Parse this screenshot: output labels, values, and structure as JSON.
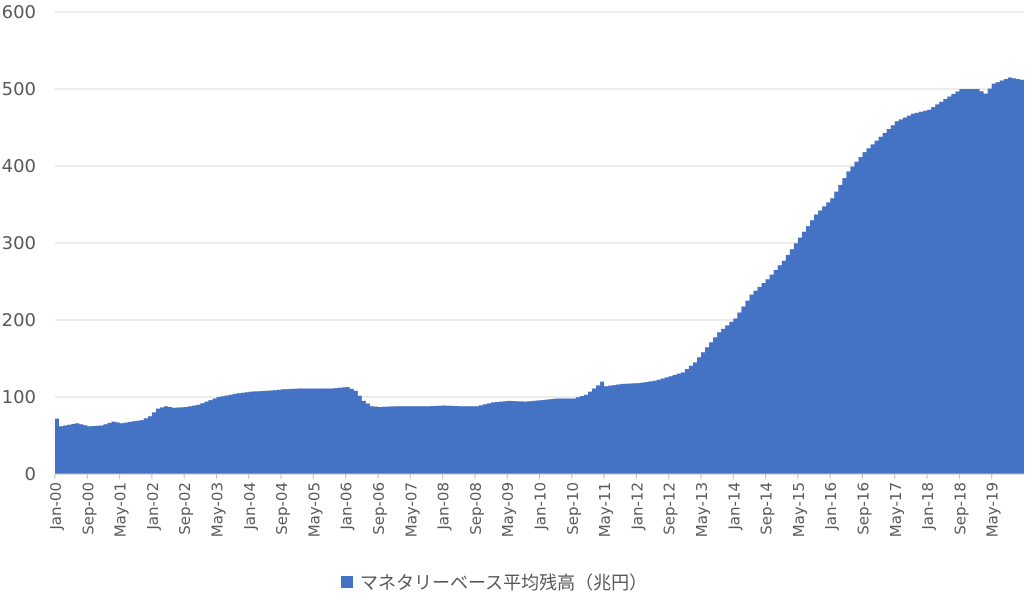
{
  "chart_data": {
    "type": "area",
    "title": "",
    "xlabel": "",
    "ylabel": "",
    "ylim": [
      0,
      600
    ],
    "y_ticks": [
      0,
      100,
      200,
      300,
      400,
      500,
      600
    ],
    "grid": true,
    "legend_position": "bottom",
    "color": "#4472C4",
    "x_tick_labels": [
      "Jan-00",
      "Sep-00",
      "May-01",
      "Jan-02",
      "Sep-02",
      "May-03",
      "Jan-04",
      "Sep-04",
      "May-05",
      "Jan-06",
      "Sep-06",
      "May-07",
      "Jan-08",
      "Sep-08",
      "May-09",
      "Jan-10",
      "Sep-10",
      "May-11",
      "Jan-12",
      "Sep-12",
      "May-13",
      "Jan-14",
      "Sep-14",
      "May-15",
      "Jan-16",
      "Sep-16",
      "May-17",
      "Jan-18",
      "Sep-18",
      "May-19"
    ],
    "x_range": [
      "Jan-00",
      "Dec-19"
    ],
    "series": [
      {
        "name": "マネタリーベース平均残高（兆円）",
        "points": [
          [
            "Jan-00",
            72
          ],
          [
            "Feb-00",
            62
          ],
          [
            "Jun-00",
            66
          ],
          [
            "Sep-00",
            62
          ],
          [
            "Dec-00",
            63
          ],
          [
            "Mar-01",
            68
          ],
          [
            "May-01",
            66
          ],
          [
            "Oct-01",
            70
          ],
          [
            "Dec-01",
            75
          ],
          [
            "Feb-02",
            85
          ],
          [
            "Apr-02",
            88
          ],
          [
            "Jun-02",
            86
          ],
          [
            "Sep-02",
            87
          ],
          [
            "Dec-02",
            90
          ],
          [
            "Feb-03",
            94
          ],
          [
            "May-03",
            100
          ],
          [
            "Sep-03",
            104
          ],
          [
            "Jan-04",
            107
          ],
          [
            "May-04",
            108
          ],
          [
            "Sep-04",
            110
          ],
          [
            "Jan-05",
            111
          ],
          [
            "May-05",
            111
          ],
          [
            "Sep-05",
            111
          ],
          [
            "Jan-06",
            113
          ],
          [
            "Mar-06",
            108
          ],
          [
            "May-06",
            95
          ],
          [
            "Jul-06",
            88
          ],
          [
            "Sep-06",
            87
          ],
          [
            "Jan-07",
            88
          ],
          [
            "May-07",
            88
          ],
          [
            "Sep-07",
            88
          ],
          [
            "Jan-08",
            89
          ],
          [
            "May-08",
            88
          ],
          [
            "Sep-08",
            88
          ],
          [
            "Jan-09",
            93
          ],
          [
            "May-09",
            95
          ],
          [
            "Sep-09",
            94
          ],
          [
            "Jan-10",
            96
          ],
          [
            "May-10",
            98
          ],
          [
            "Sep-10",
            98
          ],
          [
            "Dec-10",
            103
          ],
          [
            "Mar-11",
            115
          ],
          [
            "Apr-11",
            120
          ],
          [
            "May-11",
            114
          ],
          [
            "Sep-11",
            117
          ],
          [
            "Jan-12",
            118
          ],
          [
            "May-12",
            121
          ],
          [
            "Sep-12",
            127
          ],
          [
            "Dec-12",
            132
          ],
          [
            "Mar-13",
            145
          ],
          [
            "May-13",
            158
          ],
          [
            "Sep-13",
            184
          ],
          [
            "Jan-14",
            202
          ],
          [
            "May-14",
            233
          ],
          [
            "Sep-14",
            253
          ],
          [
            "Jan-15",
            277
          ],
          [
            "May-15",
            307
          ],
          [
            "Sep-15",
            337
          ],
          [
            "Jan-16",
            358
          ],
          [
            "May-16",
            393
          ],
          [
            "Sep-16",
            418
          ],
          [
            "Jan-17",
            438
          ],
          [
            "May-17",
            458
          ],
          [
            "Sep-17",
            468
          ],
          [
            "Jan-18",
            473
          ],
          [
            "May-18",
            487
          ],
          [
            "Sep-18",
            500
          ],
          [
            "Jan-19",
            500
          ],
          [
            "Mar-19",
            494
          ],
          [
            "May-19",
            507
          ],
          [
            "Sep-19",
            515
          ],
          [
            "Dec-19",
            512
          ]
        ]
      }
    ]
  }
}
